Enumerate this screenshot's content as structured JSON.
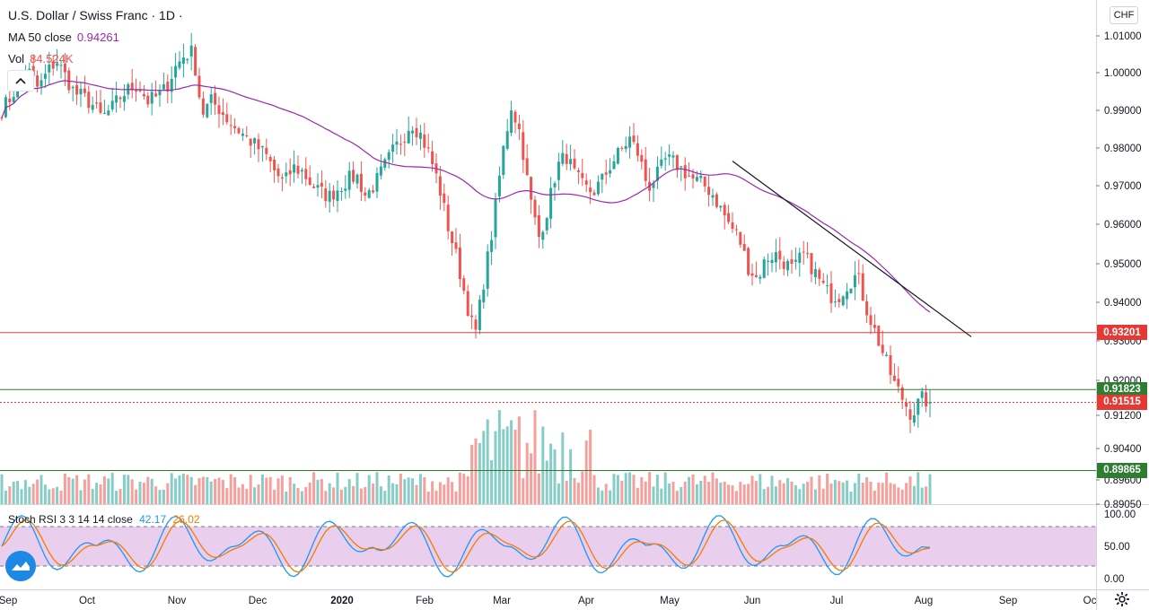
{
  "header": {
    "title": "U.S. Dollar / Swiss Franc · 1D ·",
    "ma_label": "MA 50 close",
    "ma_value": "0.94261",
    "vol_label": "Vol",
    "vol_value": "84.524K",
    "currency": "CHF"
  },
  "colors": {
    "up": "#26a69a",
    "down": "#ef5350",
    "ma": "#9c27b0",
    "level_red": "#e53935",
    "level_green": "#2e7d32",
    "stoch_k": "#2196f3",
    "stoch_d": "#f57c00",
    "stoch_band": "#e1bee7"
  },
  "price_axis": {
    "labels": [
      "1.01000",
      "1.00000",
      "0.99000",
      "0.98000",
      "0.97000",
      "0.96000",
      "0.95000",
      "0.94000",
      "0.93000",
      "0.92000",
      "0.91200",
      "0.90400",
      "0.89600",
      "0.89050"
    ]
  },
  "price_tags": [
    {
      "value": "0.93201",
      "color": "#e53935"
    },
    {
      "value": "0.91823",
      "color": "#2e7d32"
    },
    {
      "value": "0.91515",
      "color": "#e53935"
    },
    {
      "value": "0.89865",
      "color": "#2e7d32"
    }
  ],
  "stoch": {
    "label": "Stoch RSI 3 3 14 14 close",
    "k_value": "42.17",
    "d_value": "26.02",
    "axis_labels": [
      "100.00",
      "50.00",
      "0.00"
    ]
  },
  "time_axis": {
    "labels": [
      "Sep",
      "Oct",
      "Nov",
      "Dec",
      "2020",
      "Feb",
      "Mar",
      "Apr",
      "May",
      "Jun",
      "Jul",
      "Aug",
      "Sep",
      "Oc"
    ]
  },
  "chart_data": {
    "type": "candlestick",
    "title": "U.S. Dollar / Swiss Franc · 1D ·",
    "ylim": [
      0.8905,
      1.0125
    ],
    "month_labels": [
      "Sep",
      "Oct",
      "Nov",
      "Dec",
      "2020",
      "Feb",
      "Mar",
      "Apr",
      "May",
      "Jun",
      "Jul",
      "Aug",
      "Sep",
      "Oc"
    ],
    "close_series": [
      0.986,
      0.989,
      0.993,
      0.995,
      0.991,
      0.995,
      0.998,
      0.994,
      0.99,
      0.989,
      0.987,
      0.984,
      0.986,
      0.989,
      0.991,
      0.992,
      0.988,
      0.989,
      0.991,
      0.996,
      0.999,
      1.0,
      0.985,
      0.988,
      0.986,
      0.983,
      0.981,
      0.979,
      0.977,
      0.975,
      0.971,
      0.968,
      0.972,
      0.971,
      0.968,
      0.966,
      0.965,
      0.967,
      0.969,
      0.97,
      0.965,
      0.968,
      0.972,
      0.976,
      0.979,
      0.983,
      0.98,
      0.975,
      0.968,
      0.958,
      0.95,
      0.94,
      0.931,
      0.945,
      0.958,
      0.975,
      0.987,
      0.98,
      0.965,
      0.955,
      0.962,
      0.972,
      0.975,
      0.97,
      0.967,
      0.966,
      0.969,
      0.973,
      0.976,
      0.979,
      0.975,
      0.967,
      0.97,
      0.974,
      0.973,
      0.971,
      0.969,
      0.968,
      0.966,
      0.962,
      0.958,
      0.955,
      0.948,
      0.945,
      0.95,
      0.951,
      0.949,
      0.947,
      0.951,
      0.948,
      0.944,
      0.941,
      0.941,
      0.944,
      0.946,
      0.938,
      0.932,
      0.926,
      0.92,
      0.916,
      0.912,
      0.916,
      0.9152
    ],
    "ma50": {
      "name": "MA 50 close",
      "last": 0.94261
    },
    "levels": [
      0.93201,
      0.91823,
      0.91515,
      0.89865
    ],
    "trendline": {
      "from": {
        "month": "May",
        "price": 0.9735
      },
      "to": {
        "month": "Aug",
        "price": 0.931
      }
    },
    "volume_last": "84.524K",
    "stoch_rsi": {
      "k": 42.17,
      "d": 26.02,
      "bands": [
        80,
        20
      ],
      "ylim": [
        0,
        100
      ]
    }
  }
}
